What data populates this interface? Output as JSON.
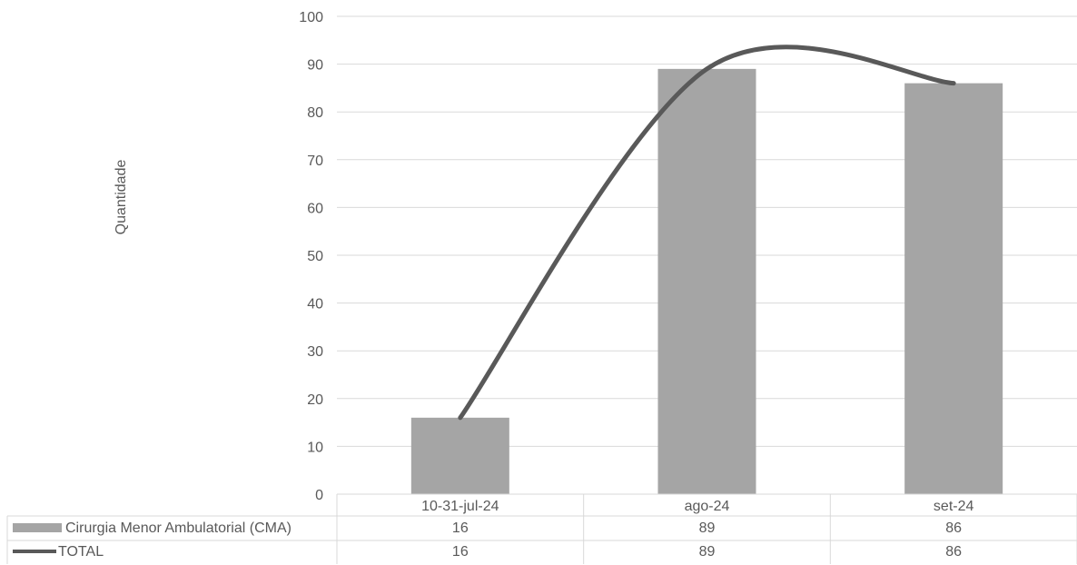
{
  "chart_data": {
    "type": "bar",
    "title": "",
    "xlabel": "",
    "ylabel": "Quantidade",
    "ylim": [
      0,
      100
    ],
    "yticks": [
      0,
      10,
      20,
      30,
      40,
      50,
      60,
      70,
      80,
      90,
      100
    ],
    "grid": true,
    "legend": "data-table",
    "categories": [
      "10-31-jul-24",
      "ago-24",
      "set-24"
    ],
    "series": [
      {
        "name": "Cirurgia Menor Ambulatorial (CMA)",
        "type": "bar",
        "color": "#a5a5a5",
        "values": [
          16,
          89,
          86
        ]
      },
      {
        "name": "TOTAL",
        "type": "line",
        "smooth": true,
        "color": "#595959",
        "values": [
          16,
          89,
          86
        ]
      }
    ]
  }
}
